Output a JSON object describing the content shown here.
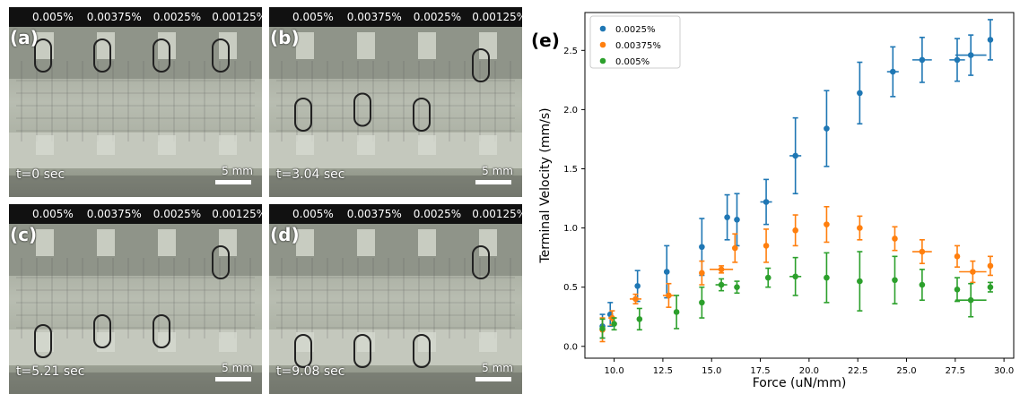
{
  "panels": [
    {
      "letter": "(a)",
      "time": "t=0 sec",
      "scale": "5 mm",
      "conc": [
        "0.005%",
        "0.00375%",
        "0.0025%",
        "0.00125%"
      ],
      "drops": [
        0.0,
        0.0,
        0.0,
        0.0
      ]
    },
    {
      "letter": "(b)",
      "time": "t=3.04 sec",
      "scale": "5 mm",
      "conc": [
        "0.005%",
        "0.00375%",
        "0.0025%",
        "0.00125%"
      ],
      "drops": [
        0.6,
        0.55,
        0.6,
        0.1
      ]
    },
    {
      "letter": "(c)",
      "time": "t=5.21 sec",
      "scale": "5 mm",
      "conc": [
        "0.005%",
        "0.00375%",
        "0.0025%",
        "0.00125%"
      ],
      "drops": [
        0.9,
        0.8,
        0.8,
        0.1
      ]
    },
    {
      "letter": "(d)",
      "time": "t=9.08 sec",
      "scale": "5 mm",
      "conc": [
        "0.005%",
        "0.00375%",
        "0.0025%",
        "0.00125%"
      ],
      "drops": [
        1.0,
        1.0,
        1.0,
        0.1
      ]
    }
  ],
  "chart_label": "(e)",
  "chart_data": {
    "type": "scatter",
    "xlabel": "Force (uN/mm)",
    "ylabel": "Terminal Velocity (mm/s)",
    "xlim": [
      8.5,
      30.5
    ],
    "ylim": [
      -0.1,
      2.82
    ],
    "xticks": [
      "10.0",
      "12.5",
      "15.0",
      "17.5",
      "20.0",
      "22.5",
      "25.0",
      "27.5",
      "30.0"
    ],
    "yticks": [
      "0.0",
      "0.5",
      "1.0",
      "1.5",
      "2.0",
      "2.5"
    ],
    "legend_position": "top-left",
    "series": [
      {
        "name": "0.0025%",
        "color": "#1f77b4",
        "points": [
          [
            9.4,
            0.17,
            0,
            0.1
          ],
          [
            9.8,
            0.27,
            0,
            0.1
          ],
          [
            11.2,
            0.51,
            0,
            0.13
          ],
          [
            12.7,
            0.63,
            0,
            0.22
          ],
          [
            14.5,
            0.84,
            0,
            0.24
          ],
          [
            15.8,
            1.09,
            0,
            0.19
          ],
          [
            16.3,
            1.07,
            0,
            0.22
          ],
          [
            17.8,
            1.22,
            0.3,
            0.19
          ],
          [
            19.3,
            1.61,
            0.3,
            0.32
          ],
          [
            20.9,
            1.84,
            0,
            0.32
          ],
          [
            22.6,
            2.14,
            0,
            0.26
          ],
          [
            24.3,
            2.32,
            0.3,
            0.21
          ],
          [
            25.8,
            2.42,
            0.5,
            0.19
          ],
          [
            27.6,
            2.42,
            0.4,
            0.18
          ],
          [
            28.3,
            2.46,
            0.8,
            0.17
          ],
          [
            29.3,
            2.59,
            0,
            0.17
          ]
        ]
      },
      {
        "name": "0.00375%",
        "color": "#ff7f0e",
        "points": [
          [
            9.4,
            0.14,
            0,
            0.1
          ],
          [
            9.9,
            0.24,
            0.2,
            0.06
          ],
          [
            11.1,
            0.4,
            0.3,
            0.04
          ],
          [
            12.8,
            0.43,
            0.3,
            0.1
          ],
          [
            14.5,
            0.62,
            0,
            0.1
          ],
          [
            15.5,
            0.65,
            0.6,
            0.03
          ],
          [
            16.2,
            0.83,
            0,
            0.12
          ],
          [
            17.8,
            0.85,
            0,
            0.14
          ],
          [
            19.3,
            0.98,
            0,
            0.13
          ],
          [
            20.9,
            1.03,
            0,
            0.15
          ],
          [
            22.6,
            1.0,
            0,
            0.1
          ],
          [
            24.4,
            0.91,
            0,
            0.1
          ],
          [
            25.8,
            0.8,
            0.5,
            0.1
          ],
          [
            27.6,
            0.76,
            0,
            0.09
          ],
          [
            28.4,
            0.63,
            0.7,
            0.09
          ],
          [
            29.3,
            0.68,
            0,
            0.08
          ]
        ]
      },
      {
        "name": "0.005%",
        "color": "#2ca02c",
        "points": [
          [
            9.4,
            0.15,
            0,
            0.08
          ],
          [
            10.0,
            0.19,
            0,
            0.05
          ],
          [
            11.3,
            0.23,
            0,
            0.09
          ],
          [
            13.2,
            0.29,
            0,
            0.14
          ],
          [
            14.5,
            0.37,
            0,
            0.13
          ],
          [
            15.5,
            0.52,
            0.3,
            0.05
          ],
          [
            16.3,
            0.5,
            0,
            0.05
          ],
          [
            17.9,
            0.58,
            0,
            0.08
          ],
          [
            19.3,
            0.59,
            0.3,
            0.16
          ],
          [
            20.9,
            0.58,
            0,
            0.21
          ],
          [
            22.6,
            0.55,
            0,
            0.25
          ],
          [
            24.4,
            0.56,
            0,
            0.2
          ],
          [
            25.8,
            0.52,
            0,
            0.13
          ],
          [
            27.6,
            0.48,
            0,
            0.1
          ],
          [
            28.3,
            0.39,
            0.8,
            0.14
          ],
          [
            29.3,
            0.5,
            0,
            0.04
          ]
        ]
      }
    ]
  }
}
